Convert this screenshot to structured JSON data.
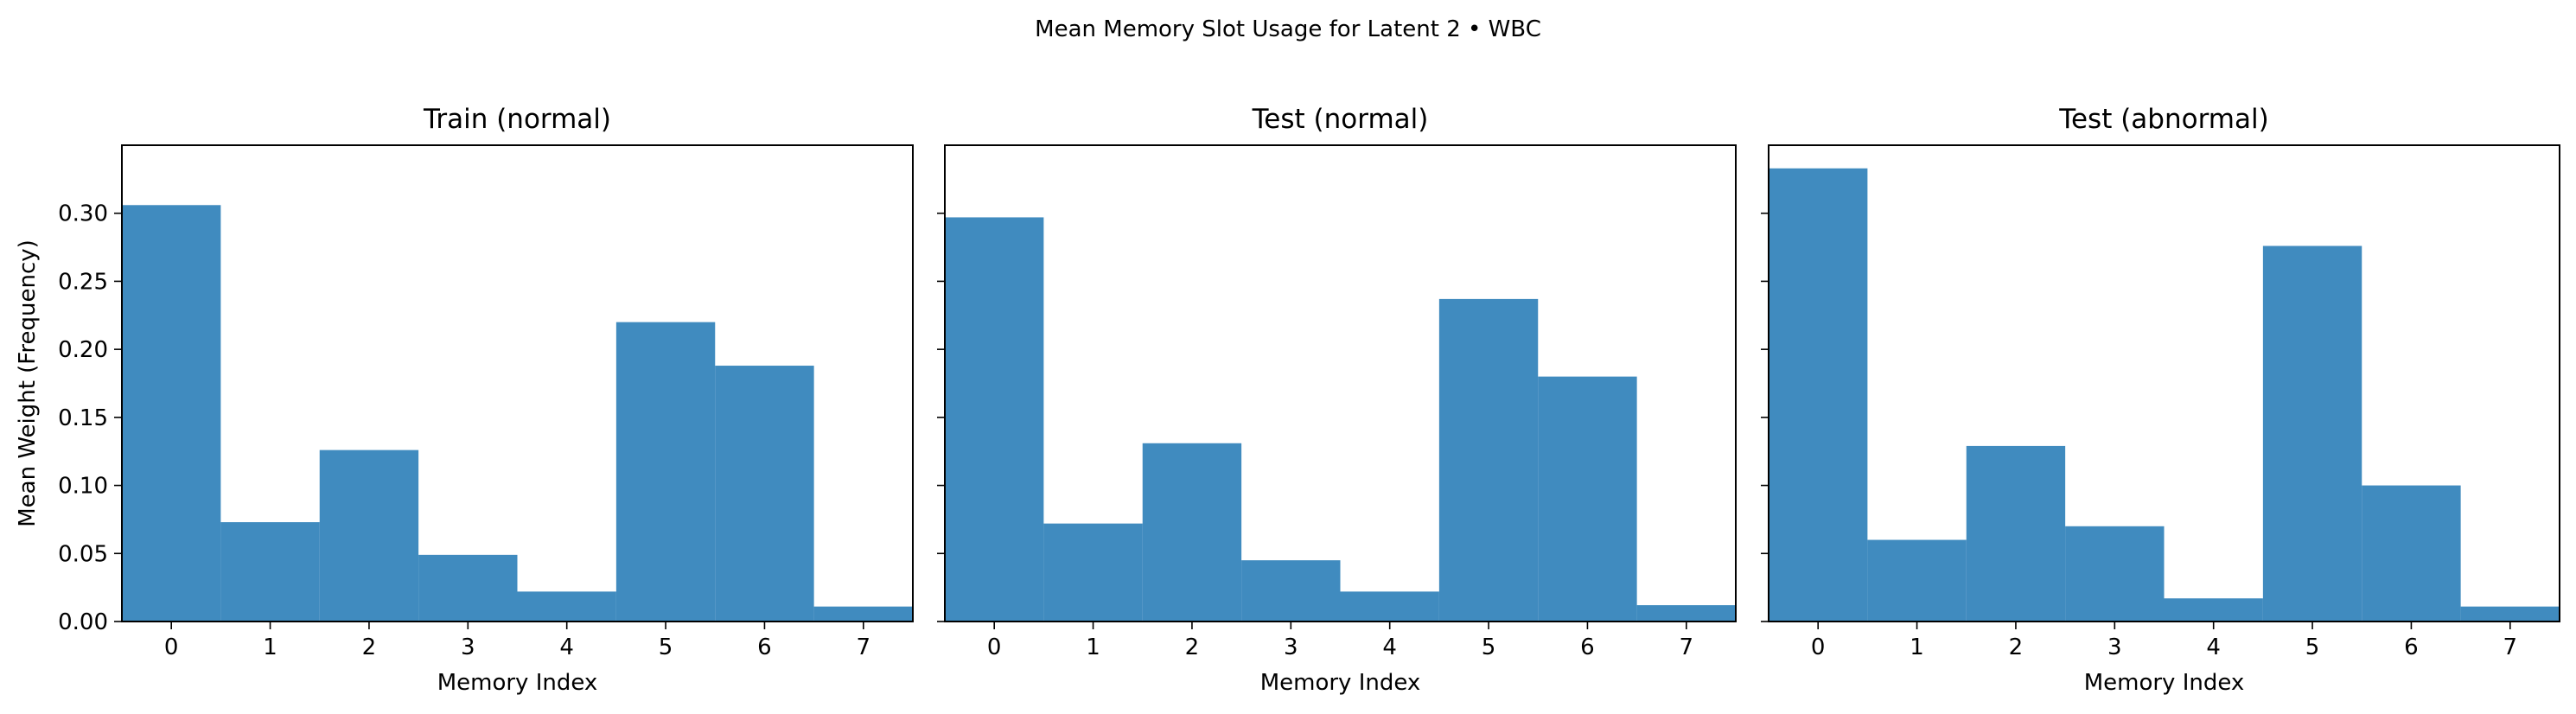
{
  "figure": {
    "suptitle": "Mean Memory Slot Usage for Latent 2 • WBC"
  },
  "chart_data": [
    {
      "type": "bar",
      "title": "Train (normal)",
      "xlabel": "Memory Index",
      "ylabel": "Mean Weight (Frequency)",
      "categories": [
        "0",
        "1",
        "2",
        "3",
        "4",
        "5",
        "6",
        "7"
      ],
      "values": [
        0.306,
        0.073,
        0.126,
        0.049,
        0.022,
        0.22,
        0.188,
        0.011
      ],
      "ylim": [
        0,
        0.35
      ],
      "yticks": [
        "0.00",
        "0.05",
        "0.10",
        "0.15",
        "0.20",
        "0.25",
        "0.30"
      ],
      "grid": false,
      "color": "#1f77b4"
    },
    {
      "type": "bar",
      "title": "Test (normal)",
      "xlabel": "Memory Index",
      "ylabel": "",
      "categories": [
        "0",
        "1",
        "2",
        "3",
        "4",
        "5",
        "6",
        "7"
      ],
      "values": [
        0.297,
        0.072,
        0.131,
        0.045,
        0.022,
        0.237,
        0.18,
        0.012
      ],
      "ylim": [
        0,
        0.35
      ],
      "yticks": [],
      "grid": false,
      "color": "#1f77b4"
    },
    {
      "type": "bar",
      "title": "Test (abnormal)",
      "xlabel": "Memory Index",
      "ylabel": "",
      "categories": [
        "0",
        "1",
        "2",
        "3",
        "4",
        "5",
        "6",
        "7"
      ],
      "values": [
        0.333,
        0.06,
        0.129,
        0.07,
        0.017,
        0.276,
        0.1,
        0.011
      ],
      "ylim": [
        0,
        0.35
      ],
      "yticks": [],
      "grid": false,
      "color": "#1f77b4"
    }
  ]
}
